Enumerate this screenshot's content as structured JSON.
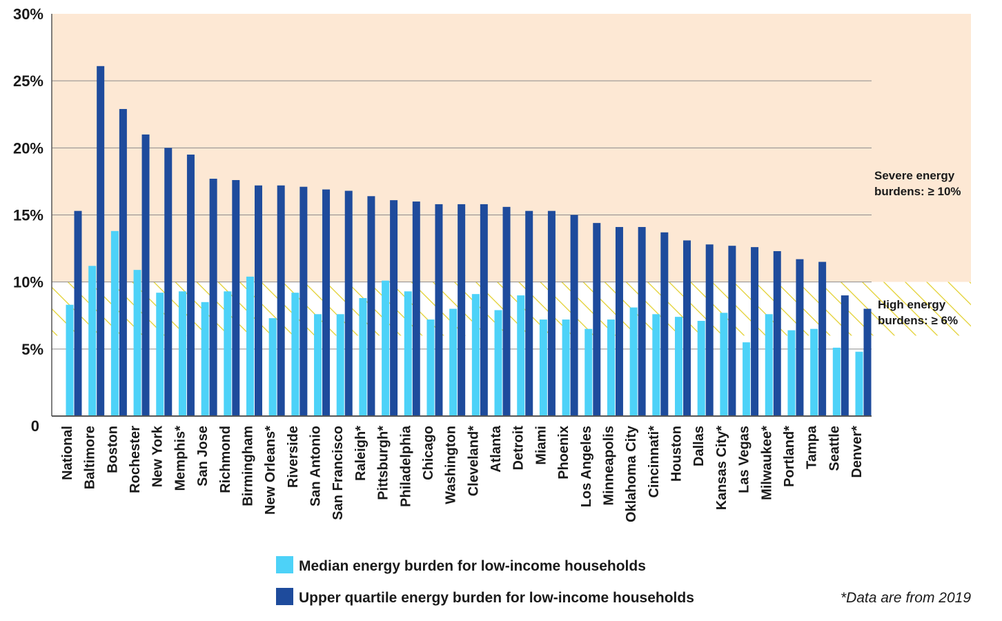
{
  "chart_data": {
    "type": "bar",
    "title": "",
    "xlabel": "",
    "ylabel": "",
    "ylim": [
      0,
      30
    ],
    "y_ticks": [
      {
        "value": 0,
        "label": "0"
      },
      {
        "value": 5,
        "label": "5%"
      },
      {
        "value": 10,
        "label": "10%"
      },
      {
        "value": 15,
        "label": "15%"
      },
      {
        "value": 20,
        "label": "20%"
      },
      {
        "value": 25,
        "label": "25%"
      },
      {
        "value": 30,
        "label": "30%"
      }
    ],
    "categories": [
      "National",
      "Baltimore",
      "Boston",
      "Rochester",
      "New York",
      "Memphis*",
      "San Jose",
      "Richmond",
      "Birmingham",
      "New Orleans*",
      "Riverside",
      "San Antonio",
      "San Francisco",
      "Raleigh*",
      "Pittsburgh*",
      "Philadelphia",
      "Chicago",
      "Washington",
      "Cleveland*",
      "Atlanta",
      "Detroit",
      "Miami",
      "Phoenix",
      "Los Angeles",
      "Minneapolis",
      "Oklahoma City",
      "Cincinnati*",
      "Houston",
      "Dallas",
      "Kansas City*",
      "Las Vegas",
      "Milwaukee*",
      "Portland*",
      "Tampa",
      "Seattle",
      "Denver*"
    ],
    "series": [
      {
        "name": "Median energy burden for low-income households",
        "color": "#4dd2f8",
        "values": [
          8.3,
          11.2,
          13.8,
          10.9,
          9.2,
          9.3,
          8.5,
          9.3,
          10.4,
          7.3,
          9.2,
          7.6,
          7.6,
          8.8,
          10.1,
          9.3,
          7.2,
          8.0,
          9.1,
          7.9,
          9.0,
          7.2,
          7.2,
          6.5,
          7.2,
          8.1,
          7.6,
          7.4,
          7.1,
          7.7,
          5.5,
          7.6,
          6.4,
          6.5,
          5.1,
          4.8
        ]
      },
      {
        "name": "Upper quartile energy burden for low-income households",
        "color": "#1e4b9c",
        "values": [
          15.3,
          26.1,
          22.9,
          21.0,
          20.0,
          19.5,
          17.7,
          17.6,
          17.2,
          17.2,
          17.1,
          16.9,
          16.8,
          16.4,
          16.1,
          16.0,
          15.8,
          15.8,
          15.8,
          15.6,
          15.3,
          15.3,
          15.0,
          14.4,
          14.1,
          14.1,
          13.7,
          13.1,
          12.8,
          12.7,
          12.6,
          12.3,
          11.7,
          11.5,
          9.0,
          8.0
        ]
      }
    ],
    "zones": [
      {
        "name": "severe",
        "from": 10,
        "to": 30,
        "label_line1": "Severe energy",
        "label_line2": "burdens: ≥ 10%",
        "color": "#fde8d4"
      },
      {
        "name": "high",
        "from": 6,
        "to": 10,
        "label_line1": "High energy",
        "label_line2": "burdens: ≥ 6%",
        "color": "#e2cf2a"
      }
    ],
    "gridlines": [
      5,
      10,
      15,
      20,
      25
    ],
    "legend": {
      "placement": "bottom",
      "items": [
        {
          "label": "Median energy burden for low-income households",
          "color": "#4dd2f8"
        },
        {
          "label": "Upper quartile energy burden for low-income households",
          "color": "#1e4b9c"
        }
      ]
    },
    "footnote": "*Data are from 2019"
  }
}
